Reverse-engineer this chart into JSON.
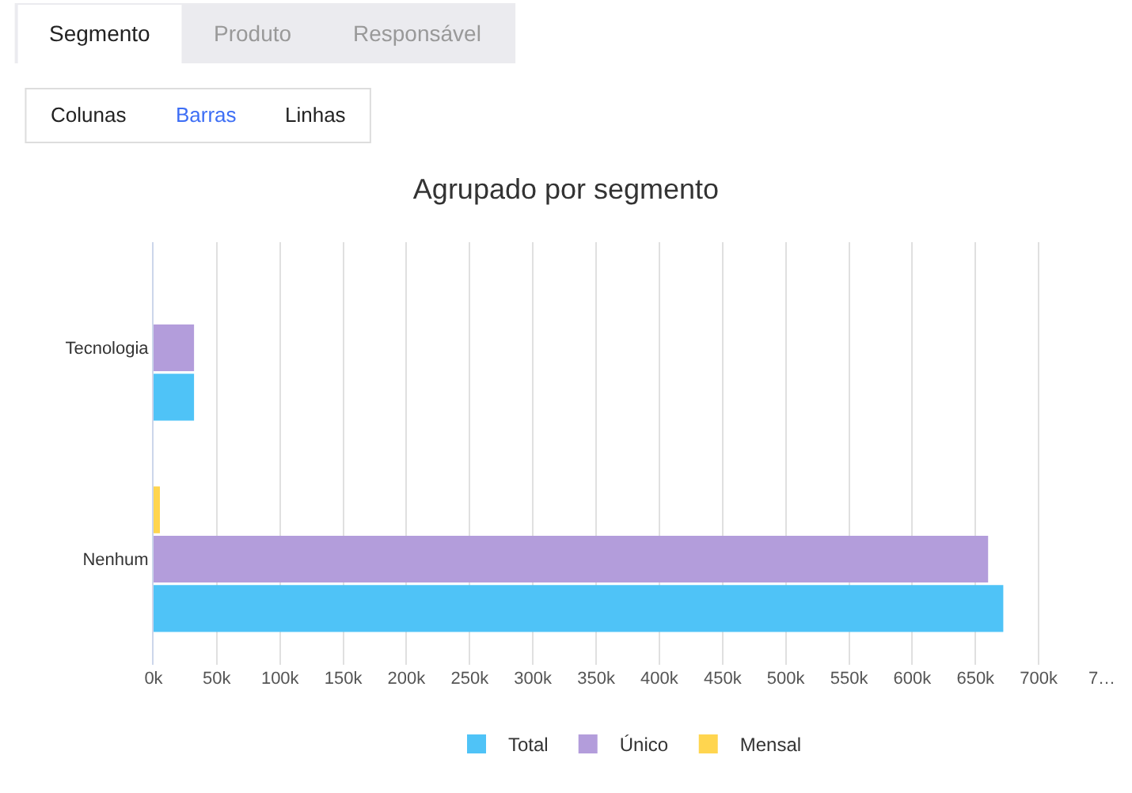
{
  "chart_data": {
    "type": "bar",
    "orientation": "horizontal",
    "title": "Agrupado por segmento",
    "categories": [
      "Tecnologia",
      "Nenhum"
    ],
    "series": [
      {
        "name": "Total",
        "color": "#4fc3f7",
        "values": [
          32000,
          672000
        ]
      },
      {
        "name": "Único",
        "color": "#b39ddb",
        "values": [
          32000,
          660000
        ]
      },
      {
        "name": "Mensal",
        "color": "#ffd54f",
        "values": [
          0,
          5000
        ]
      }
    ],
    "xlim": [
      0,
      750000
    ],
    "xticks": [
      {
        "value": 0,
        "label": "0k"
      },
      {
        "value": 50000,
        "label": "50k"
      },
      {
        "value": 100000,
        "label": "100k"
      },
      {
        "value": 150000,
        "label": "150k"
      },
      {
        "value": 200000,
        "label": "200k"
      },
      {
        "value": 250000,
        "label": "250k"
      },
      {
        "value": 300000,
        "label": "300k"
      },
      {
        "value": 350000,
        "label": "350k"
      },
      {
        "value": 400000,
        "label": "400k"
      },
      {
        "value": 450000,
        "label": "450k"
      },
      {
        "value": 500000,
        "label": "500k"
      },
      {
        "value": 550000,
        "label": "550k"
      },
      {
        "value": 600000,
        "label": "600k"
      },
      {
        "value": 650000,
        "label": "650k"
      },
      {
        "value": 700000,
        "label": "700k"
      },
      {
        "value": 750000,
        "label": "7…"
      }
    ],
    "grid": "x",
    "legend": "bottom",
    "annotations": [
      "Segmento",
      "Produto",
      "Responsável",
      "Colunas",
      "Barras",
      "Linhas"
    ]
  }
}
